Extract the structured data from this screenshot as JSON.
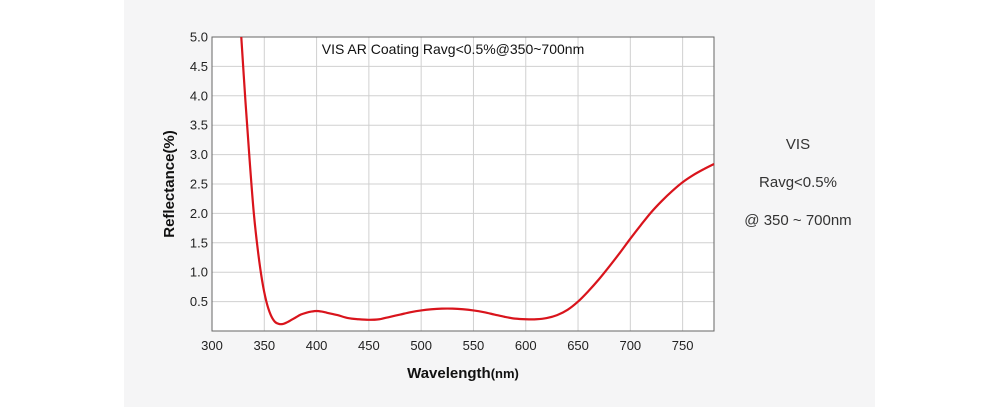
{
  "chart_data": {
    "type": "line",
    "title": "VIS AR Coating Ravg<0.5%@350~700nm",
    "xlabel": "Wavelength",
    "xlabel_unit": "(nm)",
    "ylabel": "Reflectance(%)",
    "xlim": [
      300,
      780
    ],
    "ylim": [
      0,
      5.0
    ],
    "xticks": [
      "300",
      "350",
      "400",
      "450",
      "500",
      "550",
      "600",
      "650",
      "700",
      "750"
    ],
    "yticks": [
      "0.5",
      "1.0",
      "1.5",
      "2.0",
      "2.5",
      "3.0",
      "3.5",
      "4.0",
      "4.5",
      "5.0"
    ],
    "grid": true,
    "line_color": "#d9141c",
    "series": [
      {
        "x": [
          328,
          332,
          336,
          340,
          344,
          348,
          352,
          356,
          360,
          364,
          368,
          372,
          376,
          380,
          385,
          390,
          395,
          400,
          405,
          410,
          420,
          430,
          440,
          450,
          460,
          470,
          480,
          490,
          500,
          510,
          520,
          530,
          540,
          550,
          560,
          570,
          580,
          590,
          600,
          610,
          620,
          630,
          640,
          650,
          660,
          670,
          680,
          690,
          700,
          710,
          720,
          730,
          740,
          750,
          760,
          770,
          780
        ],
        "y": [
          5.0,
          3.9,
          2.9,
          2.0,
          1.35,
          0.85,
          0.5,
          0.28,
          0.16,
          0.12,
          0.12,
          0.15,
          0.19,
          0.23,
          0.28,
          0.31,
          0.33,
          0.34,
          0.33,
          0.31,
          0.27,
          0.22,
          0.2,
          0.19,
          0.2,
          0.24,
          0.28,
          0.32,
          0.35,
          0.37,
          0.38,
          0.38,
          0.37,
          0.35,
          0.32,
          0.28,
          0.24,
          0.21,
          0.2,
          0.2,
          0.22,
          0.27,
          0.36,
          0.5,
          0.68,
          0.88,
          1.1,
          1.33,
          1.57,
          1.8,
          2.02,
          2.21,
          2.38,
          2.53,
          2.65,
          2.75,
          2.84
        ]
      }
    ]
  },
  "side_text": {
    "line1": "VIS",
    "line2": "Ravg<0.5%",
    "line3": "@ 350 ~ 700nm"
  }
}
